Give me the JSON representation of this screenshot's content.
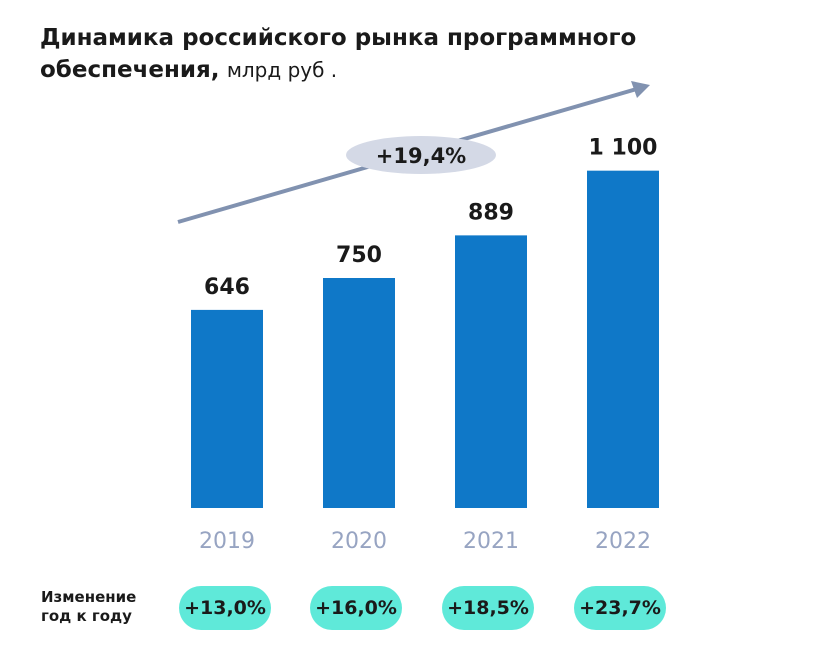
{
  "title": {
    "bold": "Динамика российского рынка программного обеспечения,",
    "unit": "млрд руб ."
  },
  "chart_data": {
    "type": "bar",
    "categories": [
      "2019",
      "2020",
      "2021",
      "2022"
    ],
    "values": [
      646,
      750,
      889,
      1100
    ],
    "data_labels": [
      "646",
      "750",
      "889",
      "1 100"
    ],
    "ylim": [
      0,
      1200
    ],
    "grid": false,
    "bar_color": "#0f78c8",
    "trend_annotation": "+19,4%"
  },
  "yoy": {
    "label_line1": "Изменение",
    "label_line2": "год к году",
    "values": [
      "+13,0%",
      "+16,0%",
      "+18,5%",
      "+23,7%"
    ],
    "pill_color": "#5fe9d9"
  },
  "colors": {
    "arrow": "#8192b0",
    "annotation_bg": "#d4d9e6",
    "axis_label": "#97a4c2"
  }
}
